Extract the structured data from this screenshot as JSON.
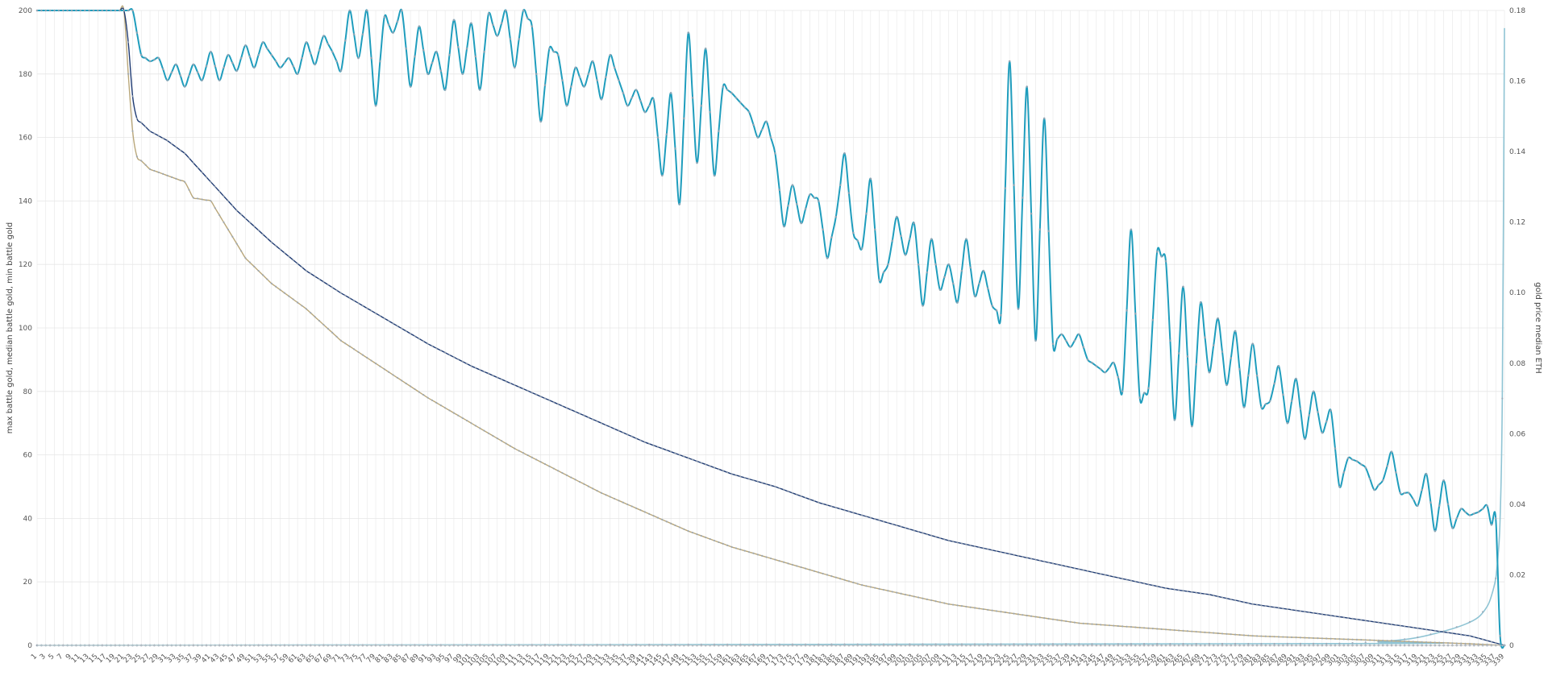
{
  "chart_data": {
    "type": "line",
    "xlabel": "",
    "ylabel": "max battle gold, median battle gold, min battle gold",
    "y2label": "gold price median ETH",
    "x_range": [
      1,
      339
    ],
    "x_tick_step": 2,
    "ylim": [
      0,
      200
    ],
    "y_ticks": [
      0,
      20,
      40,
      60,
      80,
      100,
      120,
      140,
      160,
      180,
      200
    ],
    "y2lim": [
      0,
      0.18
    ],
    "y2_ticks": [
      0,
      0.02,
      0.04,
      0.06,
      0.08,
      0.1,
      0.12,
      0.14,
      0.16,
      0.18
    ],
    "y2_tick_labels": [
      "0",
      "0.02",
      "0.04",
      "0.06",
      "0.08",
      "0.10",
      "0.12",
      "0.14",
      "0.16",
      "0.18"
    ],
    "grid": true,
    "legend": "none",
    "colors": {
      "max": "#1f9dbd",
      "median": "#1f3b73",
      "min": "#b9a77a",
      "price": "#8fc4d4",
      "grid": "#e6e6e6",
      "marker": "#9aa6b4"
    },
    "series": [
      {
        "axis": "left",
        "role": "max",
        "anchors": [
          [
            1,
            200
          ],
          [
            21,
            200
          ],
          [
            23,
            200
          ],
          [
            25,
            186
          ],
          [
            27,
            184
          ],
          [
            29,
            185
          ],
          [
            31,
            178
          ],
          [
            33,
            183
          ],
          [
            35,
            176
          ],
          [
            37,
            183
          ],
          [
            39,
            178
          ],
          [
            41,
            187
          ],
          [
            43,
            178
          ],
          [
            45,
            186
          ],
          [
            47,
            181
          ],
          [
            49,
            189
          ],
          [
            51,
            182
          ],
          [
            53,
            190
          ],
          [
            55,
            186
          ],
          [
            57,
            182
          ],
          [
            59,
            185
          ],
          [
            61,
            180
          ],
          [
            63,
            190
          ],
          [
            65,
            183
          ],
          [
            67,
            192
          ],
          [
            69,
            187
          ],
          [
            71,
            181
          ],
          [
            73,
            200
          ],
          [
            75,
            185
          ],
          [
            77,
            200
          ],
          [
            79,
            170
          ],
          [
            81,
            198
          ],
          [
            83,
            193
          ],
          [
            85,
            200
          ],
          [
            87,
            176
          ],
          [
            89,
            195
          ],
          [
            91,
            180
          ],
          [
            93,
            187
          ],
          [
            95,
            175
          ],
          [
            97,
            197
          ],
          [
            99,
            180
          ],
          [
            101,
            196
          ],
          [
            103,
            175
          ],
          [
            105,
            199
          ],
          [
            107,
            192
          ],
          [
            109,
            200
          ],
          [
            111,
            182
          ],
          [
            113,
            200
          ],
          [
            115,
            195
          ],
          [
            117,
            165
          ],
          [
            119,
            188
          ],
          [
            121,
            186
          ],
          [
            123,
            170
          ],
          [
            125,
            182
          ],
          [
            127,
            176
          ],
          [
            129,
            184
          ],
          [
            131,
            172
          ],
          [
            133,
            186
          ],
          [
            135,
            178
          ],
          [
            137,
            170
          ],
          [
            139,
            175
          ],
          [
            141,
            168
          ],
          [
            143,
            172
          ],
          [
            145,
            148
          ],
          [
            147,
            174
          ],
          [
            149,
            139
          ],
          [
            151,
            193
          ],
          [
            153,
            152
          ],
          [
            155,
            188
          ],
          [
            157,
            148
          ],
          [
            159,
            176
          ],
          [
            161,
            174
          ],
          [
            163,
            171
          ],
          [
            165,
            168
          ],
          [
            167,
            160
          ],
          [
            169,
            165
          ],
          [
            171,
            155
          ],
          [
            173,
            132
          ],
          [
            175,
            145
          ],
          [
            177,
            133
          ],
          [
            179,
            142
          ],
          [
            181,
            140
          ],
          [
            183,
            122
          ],
          [
            185,
            135
          ],
          [
            187,
            155
          ],
          [
            189,
            130
          ],
          [
            191,
            125
          ],
          [
            193,
            147
          ],
          [
            195,
            115
          ],
          [
            197,
            120
          ],
          [
            199,
            135
          ],
          [
            201,
            123
          ],
          [
            203,
            133
          ],
          [
            205,
            107
          ],
          [
            207,
            128
          ],
          [
            209,
            112
          ],
          [
            211,
            120
          ],
          [
            213,
            108
          ],
          [
            215,
            128
          ],
          [
            217,
            110
          ],
          [
            219,
            118
          ],
          [
            221,
            107
          ],
          [
            223,
            104
          ],
          [
            225,
            184
          ],
          [
            227,
            106
          ],
          [
            229,
            176
          ],
          [
            231,
            96
          ],
          [
            233,
            166
          ],
          [
            235,
            95
          ],
          [
            237,
            98
          ],
          [
            239,
            94
          ],
          [
            241,
            98
          ],
          [
            243,
            90
          ],
          [
            245,
            88
          ],
          [
            247,
            86
          ],
          [
            249,
            89
          ],
          [
            251,
            80
          ],
          [
            253,
            131
          ],
          [
            255,
            78
          ],
          [
            257,
            81
          ],
          [
            259,
            124
          ],
          [
            261,
            121
          ],
          [
            263,
            71
          ],
          [
            265,
            113
          ],
          [
            267,
            69
          ],
          [
            269,
            108
          ],
          [
            271,
            86
          ],
          [
            273,
            103
          ],
          [
            275,
            82
          ],
          [
            277,
            99
          ],
          [
            279,
            75
          ],
          [
            281,
            95
          ],
          [
            283,
            75
          ],
          [
            285,
            77
          ],
          [
            287,
            88
          ],
          [
            289,
            70
          ],
          [
            291,
            84
          ],
          [
            293,
            65
          ],
          [
            295,
            80
          ],
          [
            297,
            67
          ],
          [
            299,
            74
          ],
          [
            301,
            50
          ],
          [
            303,
            59
          ],
          [
            305,
            58
          ],
          [
            307,
            56
          ],
          [
            309,
            49
          ],
          [
            311,
            52
          ],
          [
            313,
            61
          ],
          [
            315,
            48
          ],
          [
            317,
            48
          ],
          [
            319,
            44
          ],
          [
            321,
            54
          ],
          [
            323,
            36
          ],
          [
            325,
            52
          ],
          [
            327,
            37
          ],
          [
            329,
            43
          ],
          [
            331,
            41
          ],
          [
            333,
            42
          ],
          [
            335,
            44
          ],
          [
            336,
            38
          ],
          [
            337,
            40
          ],
          [
            338,
            3
          ],
          [
            339,
            0
          ]
        ]
      },
      {
        "axis": "left",
        "role": "median",
        "anchors": [
          [
            1,
            200
          ],
          [
            21,
            200
          ],
          [
            22,
            190
          ],
          [
            23,
            173
          ],
          [
            24,
            166
          ],
          [
            27,
            162
          ],
          [
            31,
            159
          ],
          [
            35,
            155
          ],
          [
            41,
            146
          ],
          [
            47,
            137
          ],
          [
            55,
            127
          ],
          [
            63,
            118
          ],
          [
            71,
            111
          ],
          [
            81,
            103
          ],
          [
            91,
            95
          ],
          [
            101,
            88
          ],
          [
            111,
            82
          ],
          [
            121,
            76
          ],
          [
            131,
            70
          ],
          [
            141,
            64
          ],
          [
            151,
            59
          ],
          [
            161,
            54
          ],
          [
            171,
            50
          ],
          [
            181,
            45
          ],
          [
            191,
            41
          ],
          [
            201,
            37
          ],
          [
            211,
            33
          ],
          [
            221,
            30
          ],
          [
            231,
            27
          ],
          [
            241,
            24
          ],
          [
            251,
            21
          ],
          [
            261,
            18
          ],
          [
            271,
            16
          ],
          [
            281,
            13
          ],
          [
            291,
            11
          ],
          [
            301,
            9
          ],
          [
            311,
            7
          ],
          [
            321,
            5
          ],
          [
            331,
            3
          ],
          [
            339,
            0
          ]
        ]
      },
      {
        "axis": "left",
        "role": "min",
        "anchors": [
          [
            1,
            200
          ],
          [
            21,
            200
          ],
          [
            22,
            180
          ],
          [
            23,
            162
          ],
          [
            24,
            154
          ],
          [
            27,
            150
          ],
          [
            31,
            148
          ],
          [
            35,
            146
          ],
          [
            37,
            141
          ],
          [
            41,
            140
          ],
          [
            45,
            131
          ],
          [
            49,
            122
          ],
          [
            55,
            114
          ],
          [
            63,
            106
          ],
          [
            71,
            96
          ],
          [
            81,
            87
          ],
          [
            91,
            78
          ],
          [
            101,
            70
          ],
          [
            111,
            62
          ],
          [
            121,
            55
          ],
          [
            131,
            48
          ],
          [
            141,
            42
          ],
          [
            151,
            36
          ],
          [
            161,
            31
          ],
          [
            171,
            27
          ],
          [
            181,
            23
          ],
          [
            191,
            19
          ],
          [
            201,
            16
          ],
          [
            211,
            13
          ],
          [
            221,
            11
          ],
          [
            231,
            9
          ],
          [
            241,
            7
          ],
          [
            251,
            6
          ],
          [
            261,
            5
          ],
          [
            271,
            4
          ],
          [
            281,
            3
          ],
          [
            291,
            2.5
          ],
          [
            301,
            2
          ],
          [
            311,
            1.5
          ],
          [
            321,
            1
          ],
          [
            331,
            0.5
          ],
          [
            339,
            0
          ]
        ]
      },
      {
        "axis": "right",
        "role": "price",
        "anchors": [
          [
            1,
            0
          ],
          [
            300,
            0.0005
          ],
          [
            310,
            0.001
          ],
          [
            318,
            0.002
          ],
          [
            325,
            0.004
          ],
          [
            330,
            0.006
          ],
          [
            333,
            0.008
          ],
          [
            335,
            0.011
          ],
          [
            336,
            0.014
          ],
          [
            337,
            0.019
          ],
          [
            337.5,
            0.025
          ],
          [
            338,
            0.036
          ],
          [
            338.5,
            0.07
          ],
          [
            339,
            0.175
          ]
        ]
      }
    ]
  }
}
